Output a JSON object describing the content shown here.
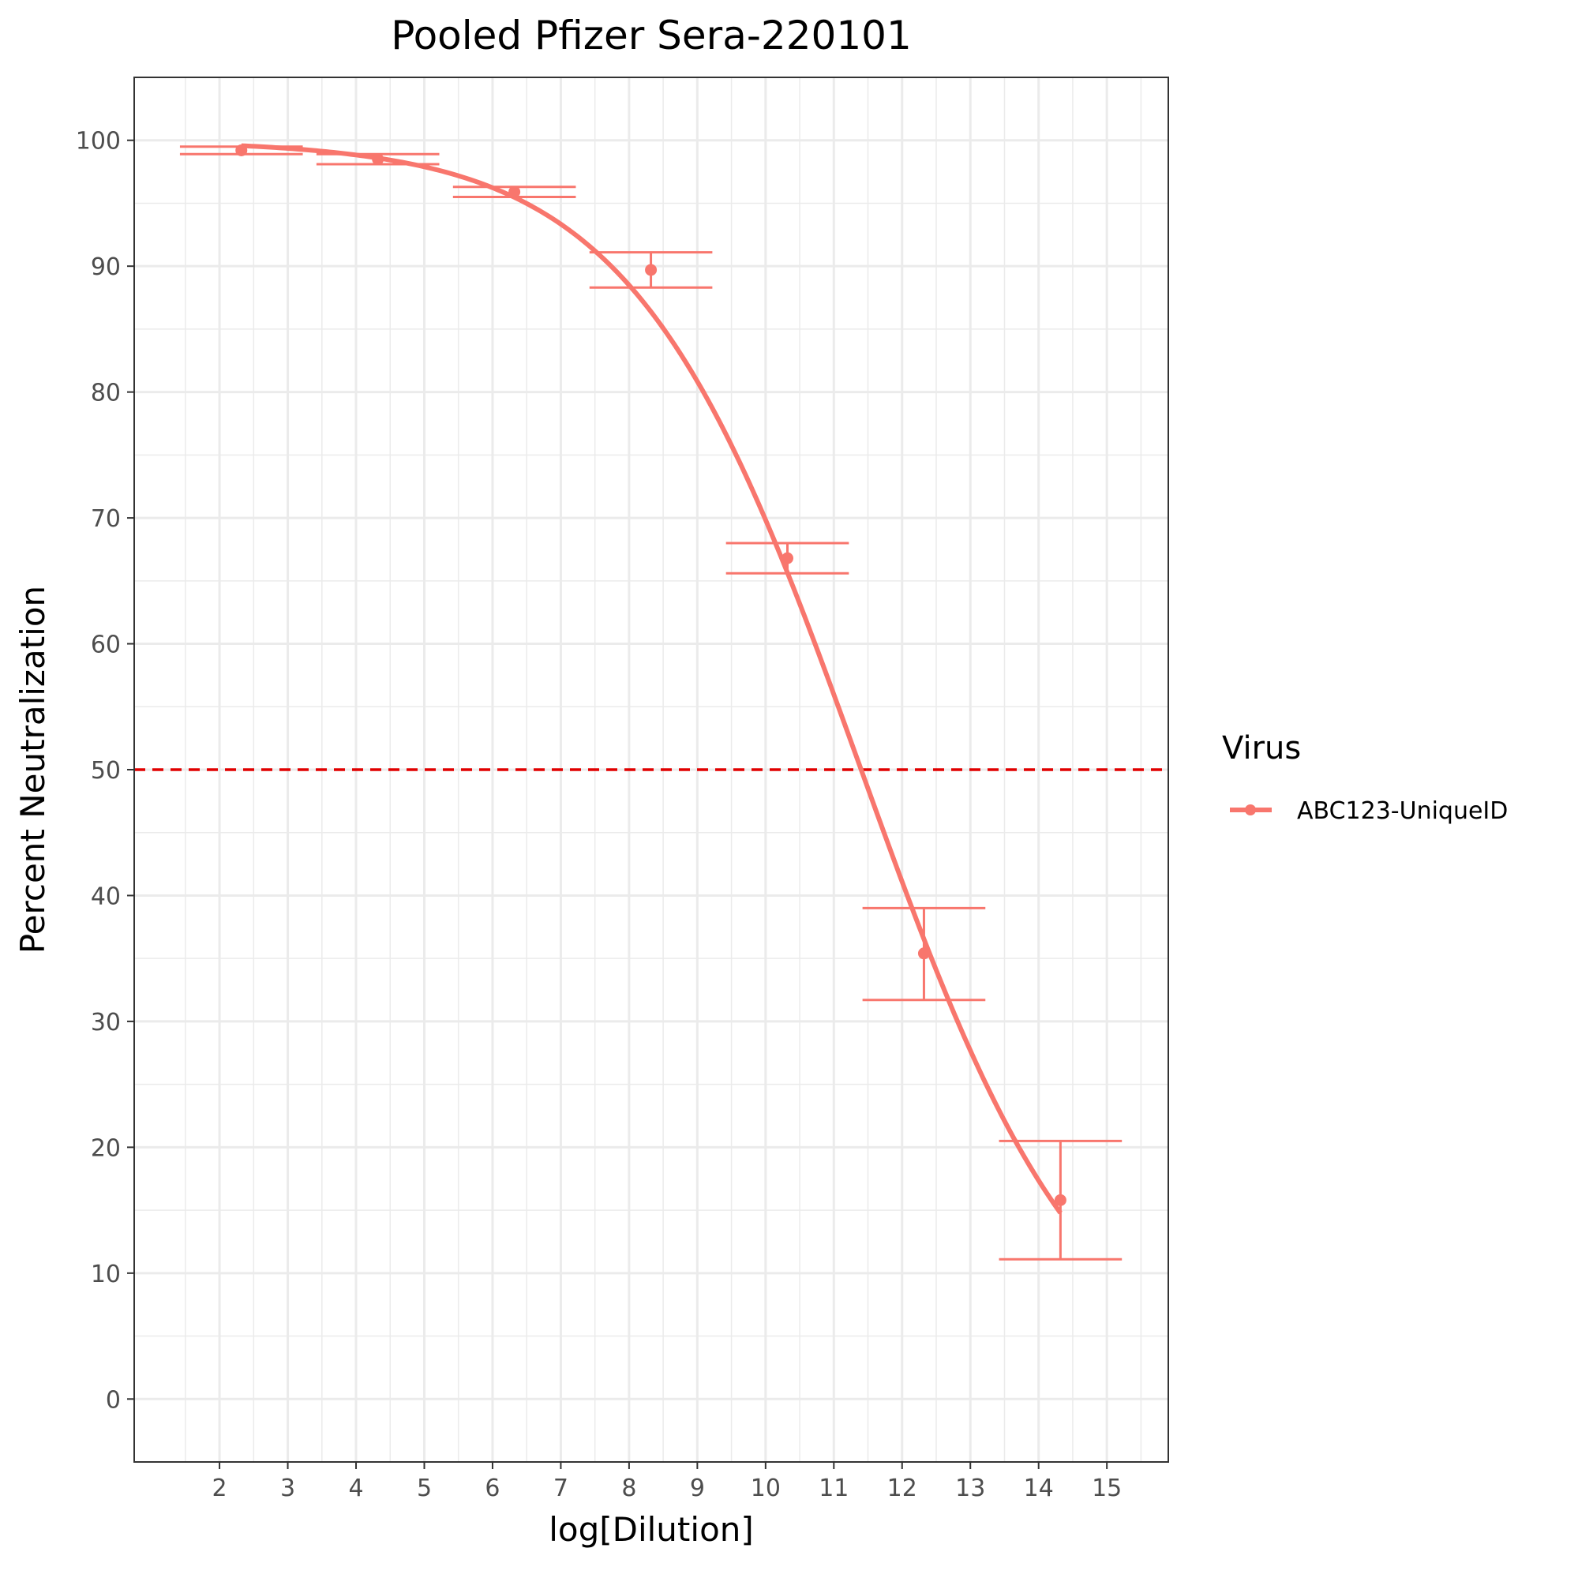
{
  "chart_data": {
    "type": "line",
    "title": "Pooled Pfizer Sera-220101",
    "xlabel": "log[Dilution]",
    "ylabel": "Percent Neutralization",
    "xlim": [
      0.75,
      15.9
    ],
    "ylim": [
      -5,
      105
    ],
    "x_ticks": [
      2,
      3,
      4,
      5,
      6,
      7,
      8,
      9,
      10,
      11,
      12,
      13,
      14,
      15
    ],
    "y_ticks": [
      0,
      10,
      20,
      30,
      40,
      50,
      60,
      70,
      80,
      90,
      100
    ],
    "grid": true,
    "reference_line": {
      "y": 50,
      "style": "dashed",
      "color": "#e00000"
    },
    "legend": {
      "title": "Virus",
      "placement": "right"
    },
    "colors": {
      "series": "#f8766d",
      "grid": "#ebebeb",
      "reference": "#e00000"
    },
    "series": [
      {
        "name": "ABC123-UniqueID",
        "points": [
          {
            "x": 2.32,
            "y": 99.2,
            "ymin": 98.9,
            "ymax": 99.5
          },
          {
            "x": 4.32,
            "y": 98.5,
            "ymin": 98.1,
            "ymax": 98.9
          },
          {
            "x": 6.32,
            "y": 95.9,
            "ymin": 95.5,
            "ymax": 96.3
          },
          {
            "x": 8.32,
            "y": 89.7,
            "ymin": 88.3,
            "ymax": 91.1
          },
          {
            "x": 10.32,
            "y": 66.8,
            "ymin": 65.6,
            "ymax": 68.0
          },
          {
            "x": 12.32,
            "y": 35.4,
            "ymin": 31.7,
            "ymax": 39.0
          },
          {
            "x": 14.32,
            "y": 15.8,
            "ymin": 11.1,
            "ymax": 20.5
          }
        ],
        "fit": {
          "model": "logistic",
          "top": 100,
          "bottom": 0,
          "ec50_x": 11.4,
          "hill": 0.6,
          "x_range": [
            2.32,
            14.32
          ]
        }
      }
    ]
  }
}
